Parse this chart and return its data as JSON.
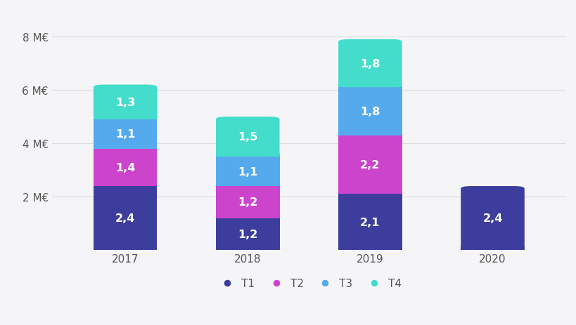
{
  "categories": [
    "2017",
    "2018",
    "2019",
    "2020"
  ],
  "T1": [
    2.4,
    1.2,
    2.1,
    2.4
  ],
  "T2": [
    1.4,
    1.2,
    2.2,
    0
  ],
  "T3": [
    1.1,
    1.1,
    1.8,
    0
  ],
  "T4": [
    1.3,
    1.5,
    1.8,
    0
  ],
  "colors": {
    "T1": "#3d3d9e",
    "T2": "#cc44cc",
    "T3": "#55aaee",
    "T4": "#44ddcc"
  },
  "ylim": [
    0,
    9
  ],
  "yticks": [
    0,
    2,
    4,
    6,
    8
  ],
  "ytick_labels": [
    "",
    "2 M€",
    "4 M€",
    "6 M€",
    "8 M€"
  ],
  "background_color": "#f5f5f8",
  "bar_width": 0.52,
  "label_fontsize": 11.5,
  "label_color": "#ffffff",
  "axis_label_fontsize": 11,
  "legend_fontsize": 11,
  "tick_color": "#555555",
  "grid_color": "#dddddd"
}
